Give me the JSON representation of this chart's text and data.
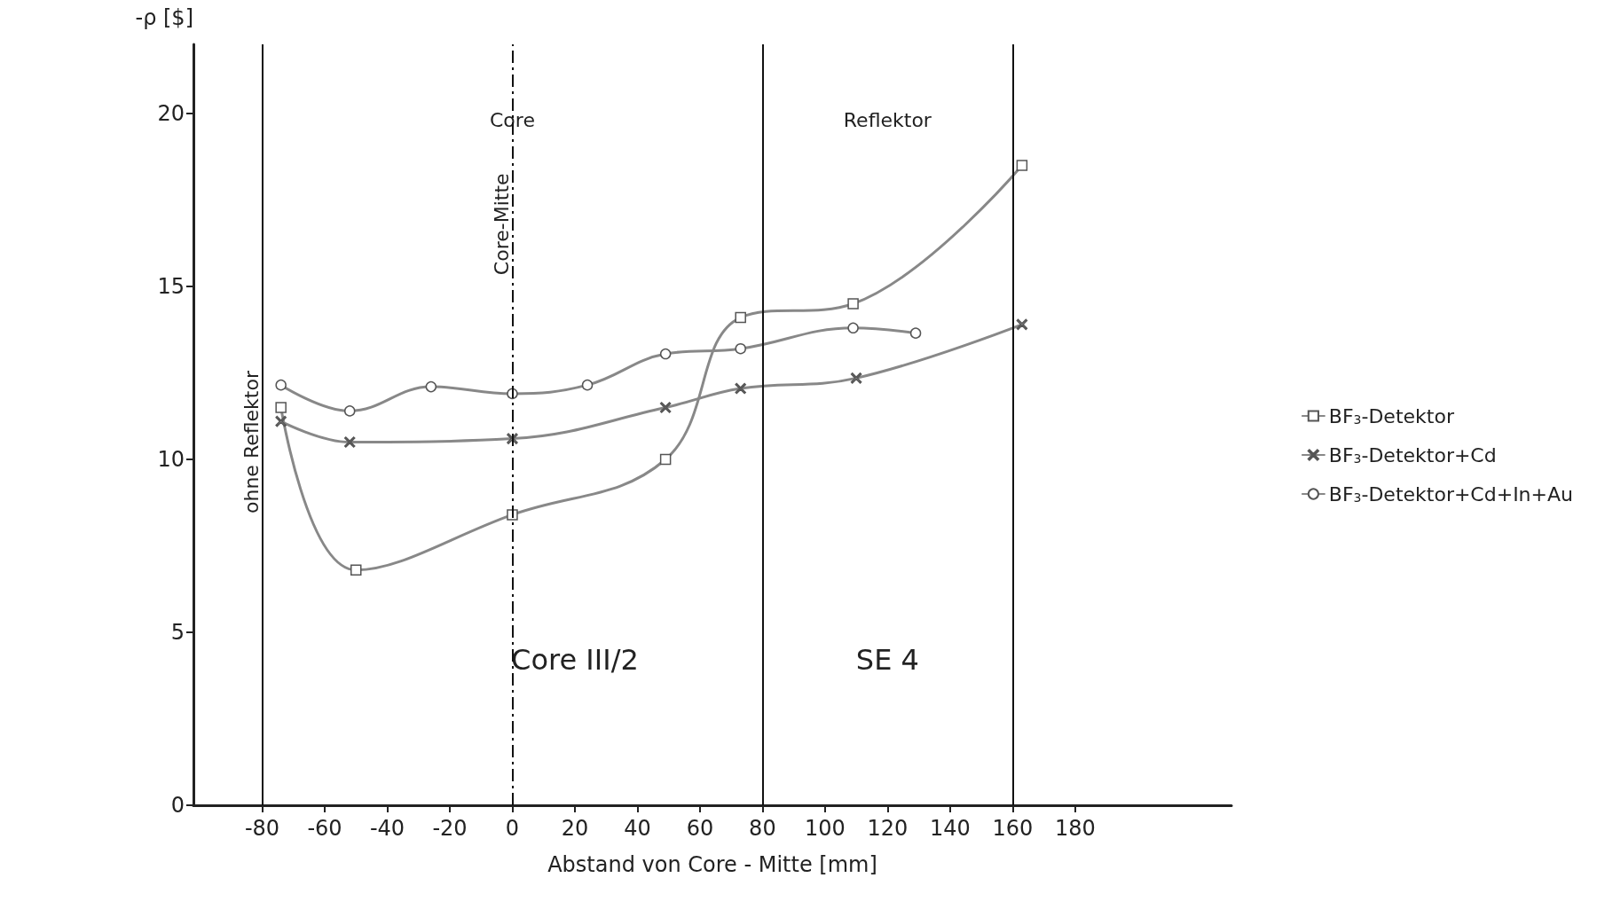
{
  "chart_data": {
    "type": "line",
    "xlabel": "Abstand von Core - Mitte [mm]",
    "ylabel": "-ρ [$]",
    "xlim": [
      -102,
      230
    ],
    "xticks": [
      -80,
      -60,
      -40,
      -20,
      0,
      20,
      40,
      60,
      80,
      100,
      120,
      140,
      160,
      180
    ],
    "ylim": [
      0,
      22
    ],
    "yticks": [
      0,
      5,
      10,
      15,
      20
    ],
    "grid": false,
    "legend": "right",
    "line_style": "solid",
    "series": [
      {
        "name": "BF$_{3}$-Detektor",
        "color": "#555555",
        "marker": "square",
        "x": [
          -74,
          -50,
          0,
          49,
          73,
          109,
          163
        ],
        "values": [
          11.5,
          6.8,
          8.4,
          10.0,
          14.1,
          14.5,
          18.5
        ]
      },
      {
        "name": "BF$_{3}$-Detektor+Cd",
        "color": "#555555",
        "marker": "cross",
        "x": [
          -74,
          -52,
          0,
          49,
          73,
          110,
          163
        ],
        "values": [
          11.1,
          10.5,
          10.6,
          11.5,
          12.05,
          12.35,
          13.9
        ]
      },
      {
        "name": "BF$_{3}$-Detektor+Cd+In+Au",
        "color": "#555555",
        "marker": "circle",
        "x": [
          -74,
          -52,
          -26,
          0,
          24,
          49,
          73,
          109,
          129
        ],
        "values": [
          12.15,
          11.4,
          12.1,
          11.9,
          12.15,
          13.05,
          13.2,
          13.8,
          13.65
        ]
      }
    ],
    "ref_lines": [
      {
        "axis": "x",
        "value": -80,
        "label": "ohne Reflektor",
        "color": "#111111",
        "line_style": "solid"
      },
      {
        "axis": "x",
        "value": 0,
        "label": "Core-Mitte",
        "color": "#111111",
        "line_style": "dashed"
      },
      {
        "axis": "x",
        "value": 80,
        "label": null,
        "color": "#111111",
        "line_style": "solid"
      },
      {
        "axis": "x",
        "value": 160,
        "label": null,
        "color": "#111111",
        "line_style": "solid"
      }
    ],
    "annotations": [
      "Core",
      "Reflektor",
      "Core III/2",
      "SE 4"
    ]
  }
}
